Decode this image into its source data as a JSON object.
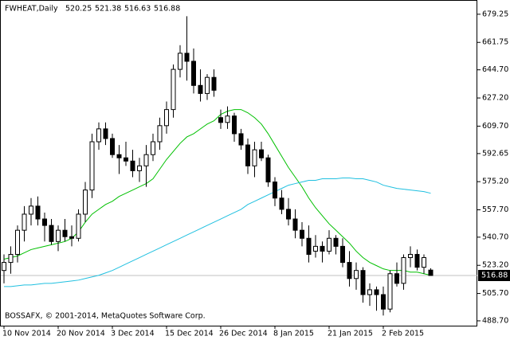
{
  "chart_data": {
    "type": "candlestick",
    "title": "FWHEAT,Daily",
    "annotation": "BOSSAFX, © 2001-2014, MetaQuotes Software Corp.",
    "categories": [
      "10 Nov 2014",
      null,
      null,
      null,
      null,
      null,
      null,
      null,
      "20 Nov 2014",
      null,
      null,
      null,
      null,
      null,
      null,
      null,
      "3 Dec 2014",
      null,
      null,
      null,
      null,
      null,
      null,
      null,
      "15 Dec 2014",
      null,
      null,
      null,
      null,
      null,
      null,
      null,
      "26 Dec 2014",
      null,
      null,
      null,
      null,
      null,
      null,
      null,
      "8 Jan 2015",
      null,
      null,
      null,
      null,
      null,
      null,
      null,
      "21 Jan 2015",
      null,
      null,
      null,
      null,
      null,
      null,
      null,
      "2 Feb 2015",
      null,
      null,
      null,
      null,
      null,
      null,
      null
    ],
    "open": [
      520,
      525,
      530,
      545,
      555,
      560,
      552,
      548,
      538,
      545,
      541,
      540,
      555,
      570,
      600,
      608,
      602,
      592,
      590,
      588,
      582,
      585,
      592,
      600,
      610,
      620,
      645,
      655,
      650,
      635,
      630,
      640,
      615,
      612,
      616,
      605,
      598,
      585,
      595,
      590,
      575,
      565,
      558,
      552,
      545,
      540,
      532,
      535,
      532,
      540,
      535,
      525,
      515,
      520,
      505,
      508,
      505,
      496,
      518,
      512,
      528,
      530,
      522,
      520.25
    ],
    "high": [
      530,
      535,
      548,
      560,
      565,
      566,
      556,
      552,
      548,
      552,
      548,
      558,
      575,
      605,
      612,
      612,
      605,
      598,
      600,
      595,
      590,
      598,
      605,
      615,
      625,
      648,
      660,
      678,
      658,
      645,
      642,
      645,
      620,
      622,
      618,
      608,
      602,
      600,
      600,
      592,
      578,
      570,
      565,
      558,
      550,
      548,
      542,
      538,
      545,
      542,
      540,
      532,
      525,
      522,
      512,
      510,
      510,
      520,
      525,
      530,
      535,
      533,
      530,
      521.38
    ],
    "low": [
      512,
      518,
      525,
      538,
      548,
      548,
      538,
      536,
      532,
      538,
      535,
      538,
      550,
      565,
      595,
      598,
      590,
      580,
      585,
      578,
      575,
      572,
      588,
      595,
      605,
      615,
      640,
      638,
      630,
      625,
      626,
      628,
      608,
      608,
      600,
      595,
      580,
      578,
      588,
      572,
      560,
      555,
      548,
      540,
      535,
      525,
      528,
      525,
      530,
      530,
      522,
      510,
      508,
      500,
      498,
      495,
      492,
      494,
      510,
      508,
      522,
      520,
      518,
      516.63
    ],
    "close": [
      525,
      530,
      545,
      555,
      560,
      552,
      548,
      538,
      545,
      541,
      540,
      555,
      570,
      600,
      608,
      602,
      592,
      590,
      588,
      582,
      585,
      592,
      600,
      610,
      620,
      645,
      655,
      650,
      635,
      630,
      640,
      632,
      612,
      616,
      605,
      598,
      585,
      595,
      590,
      575,
      565,
      558,
      552,
      545,
      540,
      530,
      535,
      532,
      540,
      535,
      525,
      515,
      520,
      505,
      508,
      505,
      496,
      518,
      512,
      528,
      530,
      522,
      528,
      516.88
    ],
    "lines": [
      {
        "color": "#00c000",
        "values": [
          527,
          528,
          529,
          531,
          533,
          534,
          535,
          536,
          537,
          538,
          540,
          544,
          550,
          555,
          558,
          561,
          563,
          566,
          568,
          570,
          572,
          574,
          577,
          583,
          589,
          594,
          599,
          603,
          605,
          608,
          611,
          613,
          617,
          619,
          620,
          620,
          618,
          615,
          611,
          605,
          598,
          591,
          584,
          578,
          572,
          565,
          559,
          554,
          549,
          545,
          541,
          537,
          532,
          528,
          525,
          523,
          521,
          520,
          520,
          520,
          519,
          519,
          518,
          517
        ]
      },
      {
        "color": "#20c0e0",
        "values": [
          510,
          510,
          510.5,
          511,
          511,
          511.5,
          512,
          512,
          512.5,
          513,
          513.5,
          514,
          515,
          516,
          517,
          518.5,
          520,
          522,
          524,
          526,
          528,
          530,
          532,
          534,
          536,
          538,
          540,
          542,
          544,
          546,
          548,
          550,
          552,
          554,
          556,
          558,
          561,
          563,
          565,
          567,
          569,
          571,
          573,
          574,
          575,
          576,
          576,
          577,
          577,
          577,
          577.5,
          577.5,
          577,
          577,
          576,
          575,
          573,
          572,
          571,
          570.5,
          570,
          569.5,
          569,
          568
        ]
      }
    ],
    "ylim": [
      485.7,
      687.6
    ],
    "yticks": [
      679.25,
      661.75,
      {
        "value": 644.7,
        "label": "644.70"
      },
      {
        "value": 627.2,
        "label": "627.20"
      },
      {
        "value": 609.7,
        "label": "609.70"
      },
      592.65,
      {
        "value": 575.2,
        "label": "575.20"
      },
      {
        "value": 557.7,
        "label": "557.70"
      },
      {
        "value": 540.7,
        "label": "540.70"
      },
      {
        "value": 523.2,
        "label": "523.20"
      },
      {
        "value": 505.7,
        "label": "505.70"
      },
      {
        "value": 488.7,
        "label": "488.70"
      }
    ],
    "grid": false,
    "bull_color": "#ffffff",
    "bear_color": "#000000"
  }
}
